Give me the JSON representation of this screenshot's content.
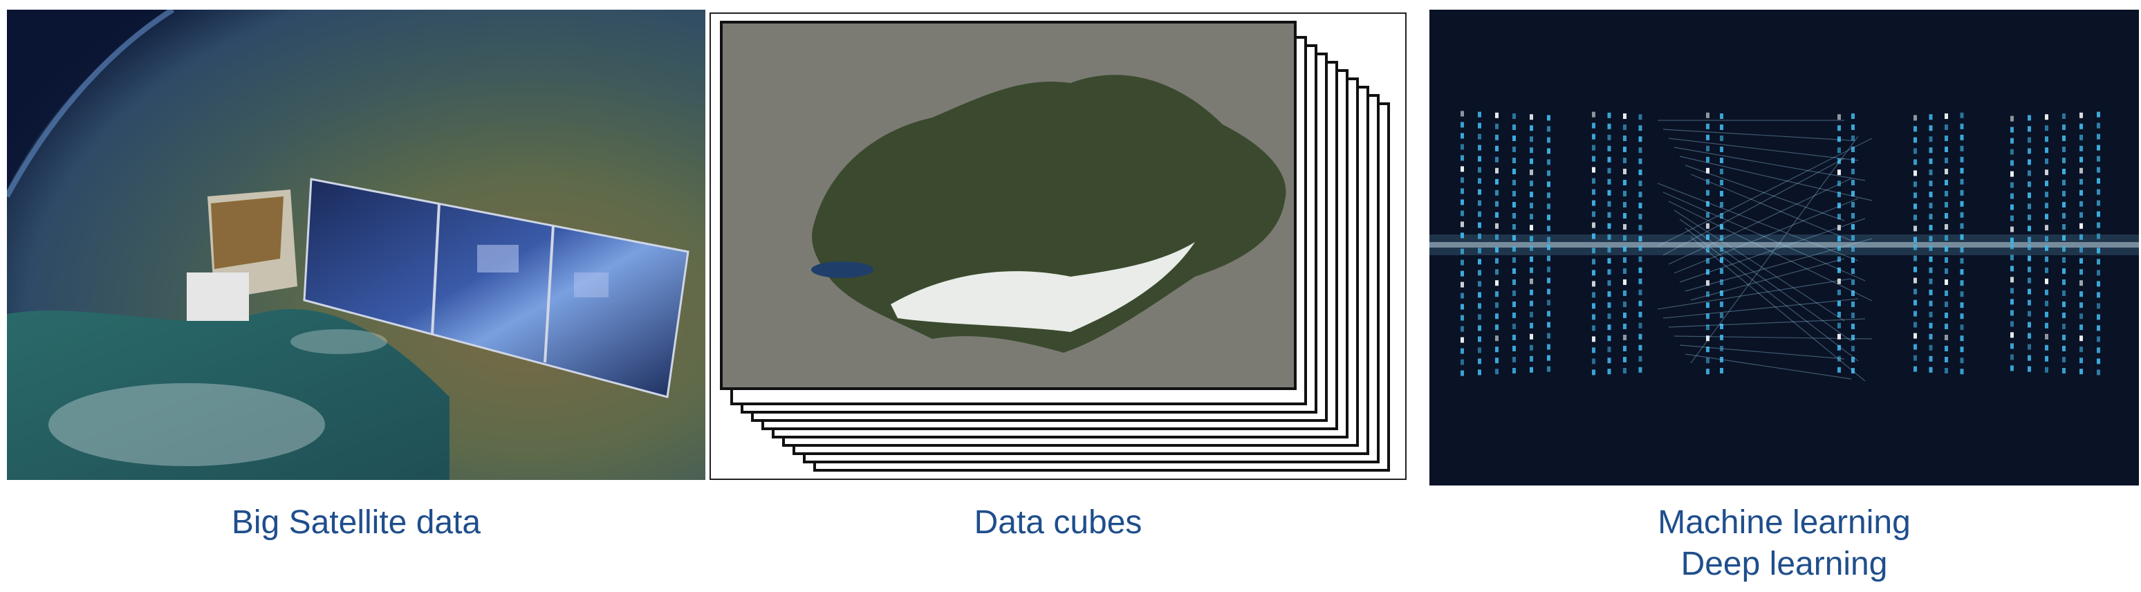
{
  "panels": [
    {
      "caption": "Big Satellite data",
      "illustration": "satellite-orbit-image"
    },
    {
      "caption": "Data cubes",
      "illustration": "stacked-map-layers-image"
    },
    {
      "caption_line1": "Machine learning",
      "caption_line2": "Deep learning",
      "illustration": "neural-network-image"
    }
  ],
  "colors": {
    "caption": "#1f4e8c",
    "space_dark": "#0a1226",
    "network_cyan": "#3fb6e8"
  }
}
